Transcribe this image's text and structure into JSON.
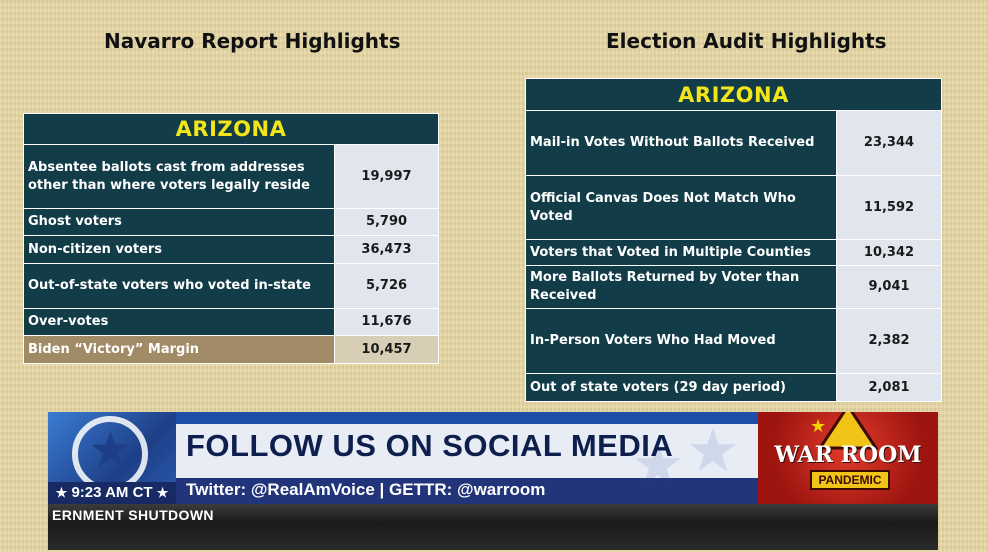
{
  "left_panel": {
    "heading": "Navarro Report Highlights",
    "state": "ARIZONA",
    "rows": [
      {
        "label": "Absentee ballots cast from addresses other than where voters legally reside",
        "value": "19,997"
      },
      {
        "label": "Ghost voters",
        "value": "5,790"
      },
      {
        "label": "Non-citizen voters",
        "value": "36,473"
      },
      {
        "label": "Out-of-state voters who voted in-state",
        "value": "5,726"
      },
      {
        "label": "Over-votes",
        "value": "11,676"
      }
    ],
    "margin_row": {
      "label": "Biden “Victory” Margin",
      "value": "10,457"
    }
  },
  "right_panel": {
    "heading": "Election Audit Highlights",
    "state": "ARIZONA",
    "rows": [
      {
        "label": "Mail-in Votes Without Ballots Received",
        "value": "23,344"
      },
      {
        "label": "Official Canvas Does Not Match Who Voted",
        "value": "11,592"
      },
      {
        "label": "Voters that Voted in Multiple Counties",
        "value": "10,342"
      },
      {
        "label": "More Ballots Returned by Voter than Received",
        "value": "9,041"
      },
      {
        "label": "In-Person Voters Who Had Moved",
        "value": "2,382"
      },
      {
        "label": "Out of state voters (29 day period)",
        "value": "2,081"
      }
    ]
  },
  "lower_third": {
    "time": "9:23 AM CT",
    "headline": "FOLLOW US ON SOCIAL MEDIA",
    "social_line": "Twitter: @RealAmVoice | GETTR: @warroom",
    "show_logo_main": "WAR ROOM",
    "show_logo_sub": "PANDEMIC",
    "ticker": "ERNMENT SHUTDOWN"
  },
  "colors": {
    "table_dark": "#123c47",
    "value_cell": "#e1e6ee",
    "state_title": "#f2e51a",
    "margin_row": "#a08b66",
    "background": "#e7d7a4"
  }
}
